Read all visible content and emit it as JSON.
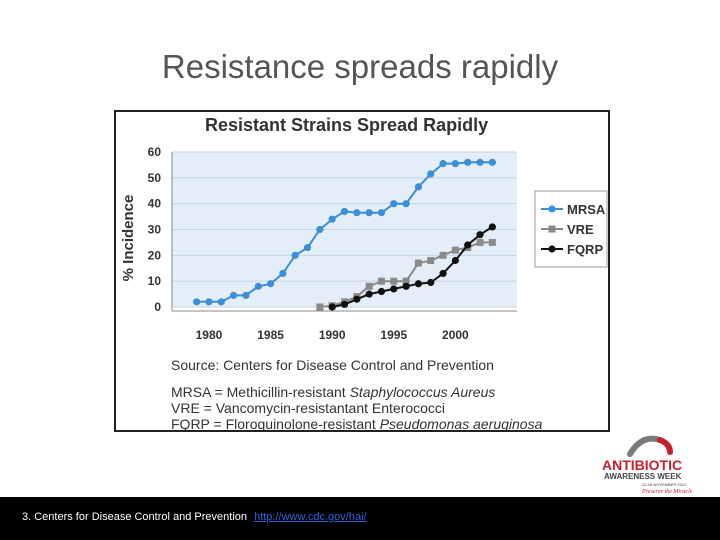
{
  "slide": {
    "title": "Resistance spreads rapidly",
    "footer_text": "3. Centers for Disease Control and Prevention",
    "footer_link": "http://www.cdc.gov/hai/"
  },
  "chart_data": {
    "type": "line",
    "title": "Resistant Strains Spread Rapidly",
    "ylabel": "% Incidence",
    "xlabel": "",
    "xlim": [
      1977,
      2005
    ],
    "ylim": [
      0,
      60
    ],
    "x_ticks": [
      "1980",
      "1985",
      "1990",
      "1995",
      "2000"
    ],
    "y_ticks": [
      "0",
      "10",
      "20",
      "30",
      "40",
      "50",
      "60"
    ],
    "grid": true,
    "legend_position": "right",
    "source": "Source: Centers for Disease Control and Prevention",
    "notes": [
      {
        "abbr": "MRSA = ",
        "desc": "Methicillin-resistant ",
        "italic": "Staphylococcus Aureus"
      },
      {
        "abbr": "VRE = ",
        "desc": "Vancomycin-resistantant Enterococci",
        "italic": ""
      },
      {
        "abbr": "FQRP = ",
        "desc": "Floroquinolone-resistant ",
        "italic": "Pseudomonas aeruginosa"
      }
    ],
    "series": [
      {
        "name": "MRSA",
        "marker": "circle",
        "color": "#3a8fd6",
        "x": [
          1979,
          1980,
          1981,
          1982,
          1983,
          1984,
          1985,
          1986,
          1987,
          1988,
          1989,
          1990,
          1991,
          1992,
          1993,
          1994,
          1995,
          1996,
          1997,
          1998,
          1999,
          2000,
          2001,
          2002,
          2003
        ],
        "y": [
          2,
          2,
          2,
          4.5,
          4.5,
          8,
          9,
          13,
          20,
          23,
          30,
          34,
          37,
          36.5,
          36.5,
          36.5,
          40,
          40,
          46.5,
          51.5,
          55.5,
          55.5,
          56,
          56,
          56
        ]
      },
      {
        "name": "VRE",
        "marker": "square",
        "color": "#8a8a8a",
        "x": [
          1989,
          1990,
          1991,
          1992,
          1993,
          1994,
          1995,
          1996,
          1997,
          1998,
          1999,
          2000,
          2001,
          2002,
          2003
        ],
        "y": [
          0,
          0.5,
          2,
          4,
          8,
          10,
          10,
          10,
          17,
          18,
          20,
          22,
          23,
          25,
          25
        ]
      },
      {
        "name": "FQRP",
        "marker": "circle",
        "color": "#111111",
        "x": [
          1990,
          1991,
          1992,
          1993,
          1994,
          1995,
          1996,
          1997,
          1998,
          1999,
          2000,
          2001,
          2002,
          2003
        ],
        "y": [
          0,
          1,
          3,
          5,
          6,
          7,
          8,
          9,
          9.5,
          13,
          18,
          24,
          28,
          31
        ]
      }
    ]
  },
  "logo": {
    "line1": "ANTIBIOTIC",
    "line2": "AWARENESS WEEK",
    "line3": "12-18 NOVEMBER 2012",
    "line4": "Preserve the Miracle"
  }
}
